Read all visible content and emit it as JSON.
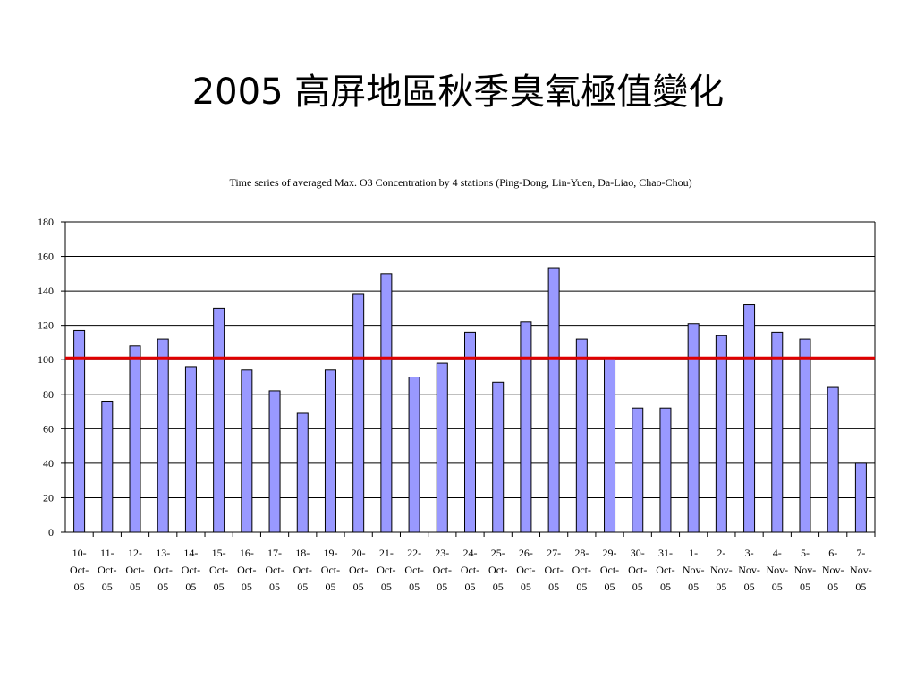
{
  "slide": {
    "title": "2005 高屏地區秋季臭氧極值變化"
  },
  "chart_data": {
    "type": "bar",
    "title": "Time series of averaged Max. O3 Concentration by 4 stations (Ping-Dong, Lin-Yuen, Da-Liao, Chao-Chou)",
    "xlabel": "",
    "ylabel": "",
    "ylim": [
      0,
      180
    ],
    "yticks": [
      0,
      20,
      40,
      60,
      80,
      100,
      120,
      140,
      160,
      180
    ],
    "grid": true,
    "categories": [
      [
        "10-",
        "Oct-",
        "05"
      ],
      [
        "11-",
        "Oct-",
        "05"
      ],
      [
        "12-",
        "Oct-",
        "05"
      ],
      [
        "13-",
        "Oct-",
        "05"
      ],
      [
        "14-",
        "Oct-",
        "05"
      ],
      [
        "15-",
        "Oct-",
        "05"
      ],
      [
        "16-",
        "Oct-",
        "05"
      ],
      [
        "17-",
        "Oct-",
        "05"
      ],
      [
        "18-",
        "Oct-",
        "05"
      ],
      [
        "19-",
        "Oct-",
        "05"
      ],
      [
        "20-",
        "Oct-",
        "05"
      ],
      [
        "21-",
        "Oct-",
        "05"
      ],
      [
        "22-",
        "Oct-",
        "05"
      ],
      [
        "23-",
        "Oct-",
        "05"
      ],
      [
        "24-",
        "Oct-",
        "05"
      ],
      [
        "25-",
        "Oct-",
        "05"
      ],
      [
        "26-",
        "Oct-",
        "05"
      ],
      [
        "27-",
        "Oct-",
        "05"
      ],
      [
        "28-",
        "Oct-",
        "05"
      ],
      [
        "29-",
        "Oct-",
        "05"
      ],
      [
        "30-",
        "Oct-",
        "05"
      ],
      [
        "31-",
        "Oct-",
        "05"
      ],
      [
        "1-",
        "Nov-",
        "05"
      ],
      [
        "2-",
        "Nov-",
        "05"
      ],
      [
        "3-",
        "Nov-",
        "05"
      ],
      [
        "4-",
        "Nov-",
        "05"
      ],
      [
        "5-",
        "Nov-",
        "05"
      ],
      [
        "6-",
        "Nov-",
        "05"
      ],
      [
        "7-",
        "Nov-",
        "05"
      ]
    ],
    "values": [
      117,
      76,
      108,
      112,
      96,
      130,
      94,
      82,
      69,
      94,
      138,
      150,
      90,
      98,
      116,
      87,
      122,
      153,
      112,
      101,
      72,
      72,
      121,
      114,
      132,
      116,
      112,
      84,
      40
    ],
    "reference_line": {
      "value": 101,
      "color": "#e00000"
    },
    "bar_color": "#9999ff",
    "bar_stroke": "#000000"
  }
}
